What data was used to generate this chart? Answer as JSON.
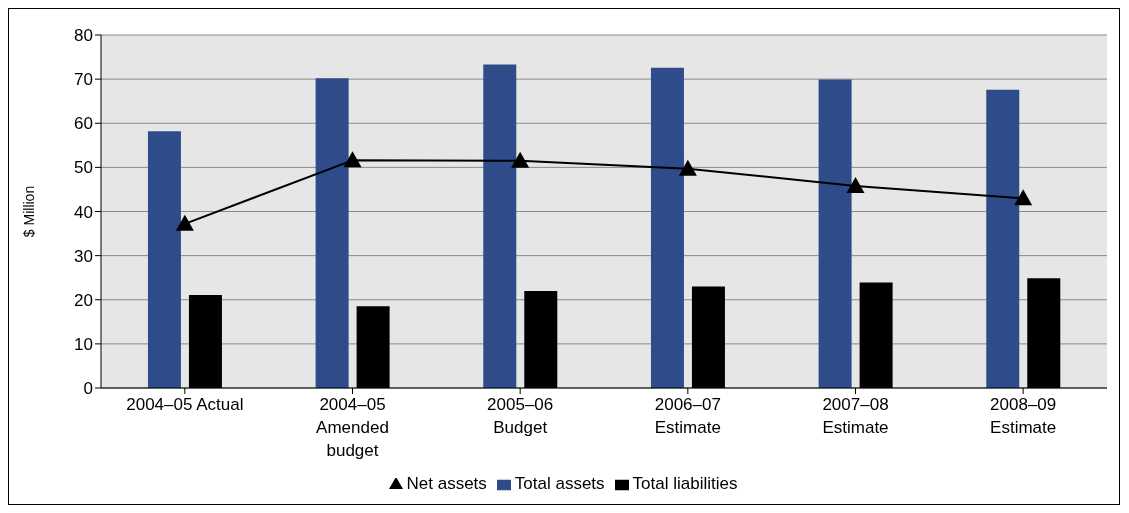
{
  "chart_data": {
    "type": "bar",
    "ylabel": "$ Million",
    "categories": [
      "2004–05 Actual",
      "2004–05\nAmended\nbudget",
      "2005–06\nBudget",
      "2006–07\nEstimate",
      "2007–08\nEstimate",
      "2008–09\nEstimate"
    ],
    "series": [
      {
        "name": "Total assets",
        "color": "#2e4c8a",
        "values": [
          58.2,
          70.2,
          73.3,
          72.6,
          69.9,
          67.6
        ]
      },
      {
        "name": "Total liabilities",
        "color": "#000000",
        "values": [
          21.1,
          18.5,
          22.0,
          23.0,
          23.9,
          24.9
        ]
      },
      {
        "name": "Net assets",
        "type": "line",
        "color": "#000000",
        "values": [
          37.2,
          51.6,
          51.5,
          49.7,
          45.8,
          43.0
        ]
      }
    ],
    "ylim": [
      0,
      80
    ],
    "yticks": [
      0,
      10,
      20,
      30,
      40,
      50,
      60,
      70,
      80
    ],
    "grid": "y",
    "legend": "bottom",
    "marker": "triangle",
    "line_style": "solid"
  }
}
